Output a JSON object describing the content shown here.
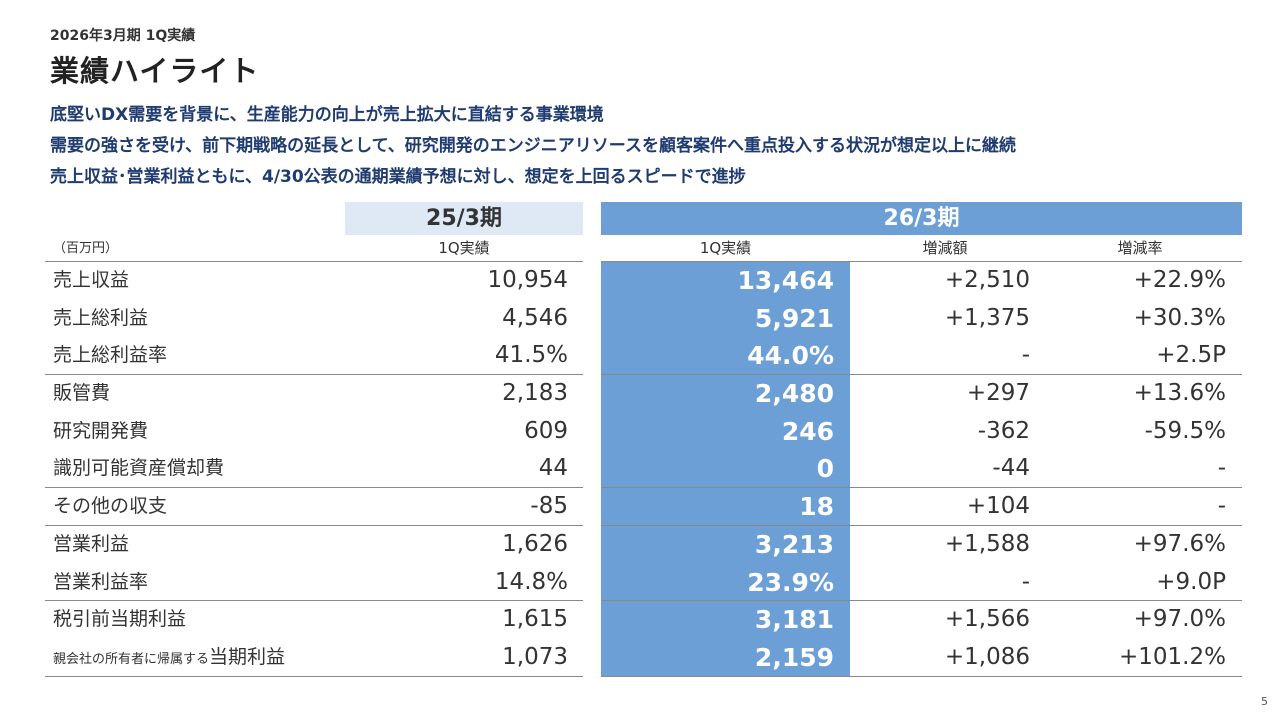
{
  "header": {
    "period": "2026年3月期 1Q実績",
    "title": "業績ハイライト"
  },
  "highlights": [
    "底堅いDX需要を背景に、生産能力の向上が売上拡大に直結する事業環境",
    "需要の強さを受け、前下期戦略の延長として、研究開発のエンジニアリソースを顧客案件へ重点投入する状況が想定以上に継続",
    "売上収益･営業利益ともに、4/30公表の通期業績予想に対し、想定を上回るスピードで進捗"
  ],
  "table": {
    "unit": "（百万円）",
    "prev_period": "25/3期",
    "curr_period": "26/3期",
    "col_prev": "1Q実績",
    "col_curr": "1Q実績",
    "col_diff": "増減額",
    "col_rate": "増減率",
    "rows": [
      {
        "label": "売上収益",
        "prev": "10,954",
        "curr": "13,464",
        "diff": "+2,510",
        "rate": "+22.9%"
      },
      {
        "label": "売上総利益",
        "prev": "4,546",
        "curr": "5,921",
        "diff": "+1,375",
        "rate": "+30.3%"
      },
      {
        "label": "売上総利益率",
        "prev": "41.5%",
        "curr": "44.0%",
        "diff": "-",
        "rate": "+2.5P"
      },
      {
        "label": "販管費",
        "prev": "2,183",
        "curr": "2,480",
        "diff": "+297",
        "rate": "+13.6%"
      },
      {
        "label": "研究開発費",
        "prev": "609",
        "curr": "246",
        "diff": "-362",
        "rate": "-59.5%"
      },
      {
        "label": "識別可能資産償却費",
        "prev": "44",
        "curr": "0",
        "diff": "-44",
        "rate": "-"
      },
      {
        "label": "その他の収支",
        "prev": "-85",
        "curr": "18",
        "diff": "+104",
        "rate": "-"
      },
      {
        "label": "営業利益",
        "prev": "1,626",
        "curr": "3,213",
        "diff": "+1,588",
        "rate": "+97.6%"
      },
      {
        "label": "営業利益率",
        "prev": "14.8%",
        "curr": "23.9%",
        "diff": "-",
        "rate": "+9.0P"
      },
      {
        "label": "税引前当期利益",
        "prev": "1,615",
        "curr": "3,181",
        "diff": "+1,566",
        "rate": "+97.0%"
      },
      {
        "label_small": "親会社の所有者に帰属する",
        "label": "当期利益",
        "prev": "1,073",
        "curr": "2,159",
        "diff": "+1,086",
        "rate": "+101.2%"
      }
    ]
  },
  "page_number": "5",
  "colors": {
    "title_blue": "#1f3b70",
    "highlight_column": "#6b9fd6",
    "prev_band": "#dfe9f5"
  }
}
